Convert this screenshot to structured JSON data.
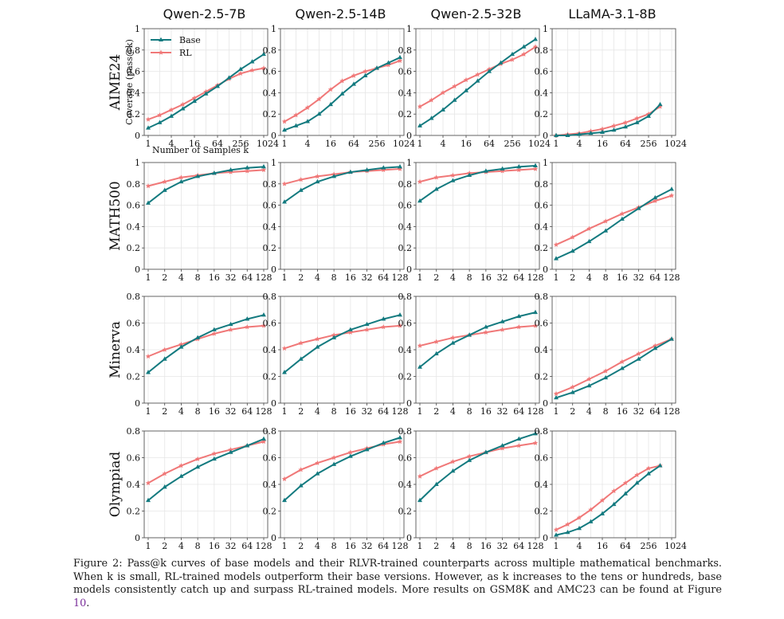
{
  "caption": {
    "label": "Figure 2:",
    "text": " Pass@k curves of base models and their RLVR-trained counterparts across multiple mathematical benchmarks. When k is small, RL-trained models outperform their base versions. However, as k increases to the tens or hundreds, base models consistently catch up and surpass RL-trained models. More results on GSM8K and AMC23 can be found at Figure ",
    "figure_ref": "10",
    "end": "."
  },
  "colors": {
    "base": "#137a7f",
    "rl": "#f07878",
    "grid": "#e6e6e6"
  },
  "models": [
    "Qwen-2.5-7B",
    "Qwen-2.5-14B",
    "Qwen-2.5-32B",
    "LLaMA-3.1-8B"
  ],
  "benchmarks": [
    "AIME24",
    "MATH500",
    "Minerva",
    "Olympiad"
  ],
  "ylabel": "Coverage (pass@k)",
  "xlabel": "Number of Samples k",
  "legend": {
    "base": "Base",
    "rl": "RL",
    "placement": "top-left"
  },
  "chart_data": [
    {
      "type": "line",
      "row": 0,
      "col": 0,
      "title": "Qwen-2.5-7B",
      "xlog": true,
      "xticks": [
        "1",
        "4",
        "16",
        "64",
        "256",
        "1024"
      ],
      "ylim": [
        0,
        1
      ],
      "yticks": [
        "0",
        "0.2",
        "0.4",
        "0.6",
        "0.8",
        "1"
      ],
      "x": [
        1,
        2,
        4,
        8,
        16,
        32,
        64,
        128,
        256,
        512,
        1024
      ],
      "series": [
        {
          "name": "Base",
          "values": [
            0.07,
            0.12,
            0.18,
            0.25,
            0.32,
            0.39,
            0.46,
            0.54,
            0.62,
            0.69,
            0.76
          ]
        },
        {
          "name": "RL",
          "values": [
            0.15,
            0.19,
            0.24,
            0.29,
            0.35,
            0.41,
            0.47,
            0.53,
            0.58,
            0.61,
            0.63
          ]
        }
      ]
    },
    {
      "type": "line",
      "row": 0,
      "col": 1,
      "title": "Qwen-2.5-14B",
      "xlog": true,
      "xticks": [
        "1",
        "4",
        "16",
        "64",
        "256",
        "1024"
      ],
      "ylim": [
        0,
        1
      ],
      "yticks": [
        "0",
        "0.2",
        "0.4",
        "0.6",
        "0.8",
        "1"
      ],
      "x": [
        1,
        2,
        4,
        8,
        16,
        32,
        64,
        128,
        256,
        512,
        1024
      ],
      "series": [
        {
          "name": "Base",
          "values": [
            0.05,
            0.09,
            0.13,
            0.2,
            0.29,
            0.39,
            0.48,
            0.56,
            0.63,
            0.68,
            0.73
          ]
        },
        {
          "name": "RL",
          "values": [
            0.13,
            0.19,
            0.26,
            0.34,
            0.43,
            0.51,
            0.56,
            0.6,
            0.63,
            0.66,
            0.7
          ]
        }
      ]
    },
    {
      "type": "line",
      "row": 0,
      "col": 2,
      "title": "Qwen-2.5-32B",
      "xlog": true,
      "xticks": [
        "1",
        "4",
        "16",
        "64",
        "256",
        "1024"
      ],
      "ylim": [
        0,
        1
      ],
      "yticks": [
        "0",
        "0.2",
        "0.4",
        "0.6",
        "0.8",
        "1"
      ],
      "x": [
        1,
        2,
        4,
        8,
        16,
        32,
        64,
        128,
        256,
        512,
        1024
      ],
      "series": [
        {
          "name": "Base",
          "values": [
            0.09,
            0.16,
            0.24,
            0.33,
            0.42,
            0.51,
            0.6,
            0.68,
            0.76,
            0.83,
            0.9
          ]
        },
        {
          "name": "RL",
          "values": [
            0.27,
            0.33,
            0.4,
            0.46,
            0.52,
            0.57,
            0.62,
            0.67,
            0.71,
            0.76,
            0.83
          ]
        }
      ]
    },
    {
      "type": "line",
      "row": 0,
      "col": 3,
      "title": "LLaMA-3.1-8B",
      "xlog": true,
      "xticks": [
        "1",
        "4",
        "16",
        "64",
        "256",
        "1024"
      ],
      "ylim": [
        0,
        1
      ],
      "yticks": [
        "0",
        "0.2",
        "0.4",
        "0.6",
        "0.8",
        "1"
      ],
      "x": [
        1,
        2,
        4,
        8,
        16,
        32,
        64,
        128,
        256,
        512
      ],
      "series": [
        {
          "name": "Base",
          "values": [
            0.0,
            0.0,
            0.01,
            0.02,
            0.03,
            0.05,
            0.08,
            0.12,
            0.18,
            0.29
          ]
        },
        {
          "name": "RL",
          "values": [
            0.0,
            0.01,
            0.02,
            0.04,
            0.06,
            0.09,
            0.12,
            0.16,
            0.2,
            0.27
          ]
        }
      ]
    },
    {
      "type": "line",
      "row": 1,
      "col": 0,
      "title": "",
      "xlog": true,
      "xticks": [
        "1",
        "2",
        "4",
        "8",
        "16",
        "32",
        "64",
        "128"
      ],
      "ylim": [
        0,
        1
      ],
      "yticks": [
        "0",
        "0.2",
        "0.4",
        "0.6",
        "0.8",
        "1"
      ],
      "x": [
        1,
        2,
        4,
        8,
        16,
        32,
        64,
        128
      ],
      "series": [
        {
          "name": "Base",
          "values": [
            0.62,
            0.74,
            0.82,
            0.87,
            0.9,
            0.93,
            0.95,
            0.96
          ]
        },
        {
          "name": "RL",
          "values": [
            0.78,
            0.82,
            0.86,
            0.88,
            0.9,
            0.91,
            0.92,
            0.93
          ]
        }
      ]
    },
    {
      "type": "line",
      "row": 1,
      "col": 1,
      "title": "",
      "xlog": true,
      "xticks": [
        "1",
        "2",
        "4",
        "8",
        "16",
        "32",
        "64",
        "128"
      ],
      "ylim": [
        0,
        1
      ],
      "yticks": [
        "0",
        "0.2",
        "0.4",
        "0.6",
        "0.8",
        "1"
      ],
      "x": [
        1,
        2,
        4,
        8,
        16,
        32,
        64,
        128
      ],
      "series": [
        {
          "name": "Base",
          "values": [
            0.63,
            0.74,
            0.82,
            0.87,
            0.91,
            0.93,
            0.95,
            0.96
          ]
        },
        {
          "name": "RL",
          "values": [
            0.8,
            0.84,
            0.87,
            0.89,
            0.91,
            0.92,
            0.93,
            0.94
          ]
        }
      ]
    },
    {
      "type": "line",
      "row": 1,
      "col": 2,
      "title": "",
      "xlog": true,
      "xticks": [
        "1",
        "2",
        "4",
        "8",
        "16",
        "32",
        "64",
        "128"
      ],
      "ylim": [
        0,
        1
      ],
      "yticks": [
        "0",
        "0.2",
        "0.4",
        "0.6",
        "0.8",
        "1"
      ],
      "x": [
        1,
        2,
        4,
        8,
        16,
        32,
        64,
        128
      ],
      "series": [
        {
          "name": "Base",
          "values": [
            0.64,
            0.75,
            0.83,
            0.88,
            0.92,
            0.94,
            0.96,
            0.97
          ]
        },
        {
          "name": "RL",
          "values": [
            0.82,
            0.86,
            0.88,
            0.9,
            0.91,
            0.92,
            0.93,
            0.94
          ]
        }
      ]
    },
    {
      "type": "line",
      "row": 1,
      "col": 3,
      "title": "",
      "xlog": true,
      "xticks": [
        "1",
        "2",
        "4",
        "8",
        "16",
        "32",
        "64",
        "128"
      ],
      "ylim": [
        0,
        1
      ],
      "yticks": [
        "0",
        "0.2",
        "0.4",
        "0.6",
        "0.8",
        "1"
      ],
      "x": [
        1,
        2,
        4,
        8,
        16,
        32,
        64,
        128
      ],
      "series": [
        {
          "name": "Base",
          "values": [
            0.1,
            0.17,
            0.26,
            0.36,
            0.47,
            0.57,
            0.67,
            0.75
          ]
        },
        {
          "name": "RL",
          "values": [
            0.23,
            0.3,
            0.38,
            0.45,
            0.52,
            0.58,
            0.64,
            0.69
          ]
        }
      ]
    },
    {
      "type": "line",
      "row": 2,
      "col": 0,
      "title": "",
      "xlog": true,
      "xticks": [
        "1",
        "2",
        "4",
        "8",
        "16",
        "32",
        "64",
        "128"
      ],
      "ylim": [
        0,
        0.8
      ],
      "yticks": [
        "0",
        "0.2",
        "0.4",
        "0.6",
        "0.8"
      ],
      "x": [
        1,
        2,
        4,
        8,
        16,
        32,
        64,
        128
      ],
      "series": [
        {
          "name": "Base",
          "values": [
            0.23,
            0.33,
            0.42,
            0.49,
            0.55,
            0.59,
            0.63,
            0.66
          ]
        },
        {
          "name": "RL",
          "values": [
            0.35,
            0.4,
            0.44,
            0.48,
            0.52,
            0.55,
            0.57,
            0.58
          ]
        }
      ]
    },
    {
      "type": "line",
      "row": 2,
      "col": 1,
      "title": "",
      "xlog": true,
      "xticks": [
        "1",
        "2",
        "4",
        "8",
        "16",
        "32",
        "64",
        "128"
      ],
      "ylim": [
        0,
        0.8
      ],
      "yticks": [
        "0",
        "0.2",
        "0.4",
        "0.6",
        "0.8"
      ],
      "x": [
        1,
        2,
        4,
        8,
        16,
        32,
        64,
        128
      ],
      "series": [
        {
          "name": "Base",
          "values": [
            0.23,
            0.33,
            0.42,
            0.49,
            0.55,
            0.59,
            0.63,
            0.66
          ]
        },
        {
          "name": "RL",
          "values": [
            0.41,
            0.45,
            0.48,
            0.51,
            0.53,
            0.55,
            0.57,
            0.58
          ]
        }
      ]
    },
    {
      "type": "line",
      "row": 2,
      "col": 2,
      "title": "",
      "xlog": true,
      "xticks": [
        "1",
        "2",
        "4",
        "8",
        "16",
        "32",
        "64",
        "128"
      ],
      "ylim": [
        0,
        0.8
      ],
      "yticks": [
        "0",
        "0.2",
        "0.4",
        "0.6",
        "0.8"
      ],
      "x": [
        1,
        2,
        4,
        8,
        16,
        32,
        64,
        128
      ],
      "series": [
        {
          "name": "Base",
          "values": [
            0.27,
            0.37,
            0.45,
            0.51,
            0.57,
            0.61,
            0.65,
            0.68
          ]
        },
        {
          "name": "RL",
          "values": [
            0.43,
            0.46,
            0.49,
            0.51,
            0.53,
            0.55,
            0.57,
            0.58
          ]
        }
      ]
    },
    {
      "type": "line",
      "row": 2,
      "col": 3,
      "title": "",
      "xlog": true,
      "xticks": [
        "1",
        "2",
        "4",
        "8",
        "16",
        "32",
        "64",
        "128"
      ],
      "ylim": [
        0,
        0.8
      ],
      "yticks": [
        "0",
        "0.2",
        "0.4",
        "0.6",
        "0.8"
      ],
      "x": [
        1,
        2,
        4,
        8,
        16,
        32,
        64,
        128
      ],
      "series": [
        {
          "name": "Base",
          "values": [
            0.04,
            0.08,
            0.13,
            0.19,
            0.26,
            0.33,
            0.41,
            0.48
          ]
        },
        {
          "name": "RL",
          "values": [
            0.07,
            0.12,
            0.18,
            0.24,
            0.31,
            0.37,
            0.43,
            0.48
          ]
        }
      ]
    },
    {
      "type": "line",
      "row": 3,
      "col": 0,
      "title": "",
      "xlog": true,
      "xticks": [
        "1",
        "2",
        "4",
        "8",
        "16",
        "32",
        "64",
        "128"
      ],
      "ylim": [
        0,
        0.8
      ],
      "yticks": [
        "0",
        "0.2",
        "0.4",
        "0.6",
        "0.8"
      ],
      "x": [
        1,
        2,
        4,
        8,
        16,
        32,
        64,
        128
      ],
      "series": [
        {
          "name": "Base",
          "values": [
            0.28,
            0.38,
            0.46,
            0.53,
            0.59,
            0.64,
            0.69,
            0.74
          ]
        },
        {
          "name": "RL",
          "values": [
            0.41,
            0.48,
            0.54,
            0.59,
            0.63,
            0.66,
            0.69,
            0.72
          ]
        }
      ]
    },
    {
      "type": "line",
      "row": 3,
      "col": 1,
      "title": "",
      "xlog": true,
      "xticks": [
        "1",
        "2",
        "4",
        "8",
        "16",
        "32",
        "64",
        "128"
      ],
      "ylim": [
        0,
        0.8
      ],
      "yticks": [
        "0",
        "0.2",
        "0.4",
        "0.6",
        "0.8"
      ],
      "x": [
        1,
        2,
        4,
        8,
        16,
        32,
        64,
        128
      ],
      "series": [
        {
          "name": "Base",
          "values": [
            0.28,
            0.39,
            0.48,
            0.55,
            0.61,
            0.66,
            0.71,
            0.75
          ]
        },
        {
          "name": "RL",
          "values": [
            0.44,
            0.51,
            0.56,
            0.6,
            0.64,
            0.67,
            0.7,
            0.72
          ]
        }
      ]
    },
    {
      "type": "line",
      "row": 3,
      "col": 2,
      "title": "",
      "xlog": true,
      "xticks": [
        "1",
        "2",
        "4",
        "8",
        "16",
        "32",
        "64",
        "128"
      ],
      "ylim": [
        0,
        0.8
      ],
      "yticks": [
        "0",
        "0.2",
        "0.4",
        "0.6",
        "0.8"
      ],
      "x": [
        1,
        2,
        4,
        8,
        16,
        32,
        64,
        128
      ],
      "series": [
        {
          "name": "Base",
          "values": [
            0.28,
            0.4,
            0.5,
            0.58,
            0.64,
            0.69,
            0.74,
            0.78
          ]
        },
        {
          "name": "RL",
          "values": [
            0.46,
            0.52,
            0.57,
            0.61,
            0.64,
            0.67,
            0.69,
            0.71
          ]
        }
      ]
    },
    {
      "type": "line",
      "row": 3,
      "col": 3,
      "title": "",
      "xlog": true,
      "xticks": [
        "1",
        "4",
        "16",
        "64",
        "256",
        "1024"
      ],
      "ylim": [
        0,
        0.8
      ],
      "yticks": [
        "0",
        "0.2",
        "0.4",
        "0.6",
        "0.8"
      ],
      "x": [
        1,
        2,
        4,
        8,
        16,
        32,
        64,
        128,
        256,
        512
      ],
      "series": [
        {
          "name": "Base",
          "values": [
            0.02,
            0.04,
            0.07,
            0.12,
            0.18,
            0.25,
            0.33,
            0.41,
            0.48,
            0.54
          ]
        },
        {
          "name": "RL",
          "values": [
            0.06,
            0.1,
            0.15,
            0.21,
            0.28,
            0.35,
            0.41,
            0.47,
            0.52,
            0.54
          ]
        }
      ]
    }
  ]
}
